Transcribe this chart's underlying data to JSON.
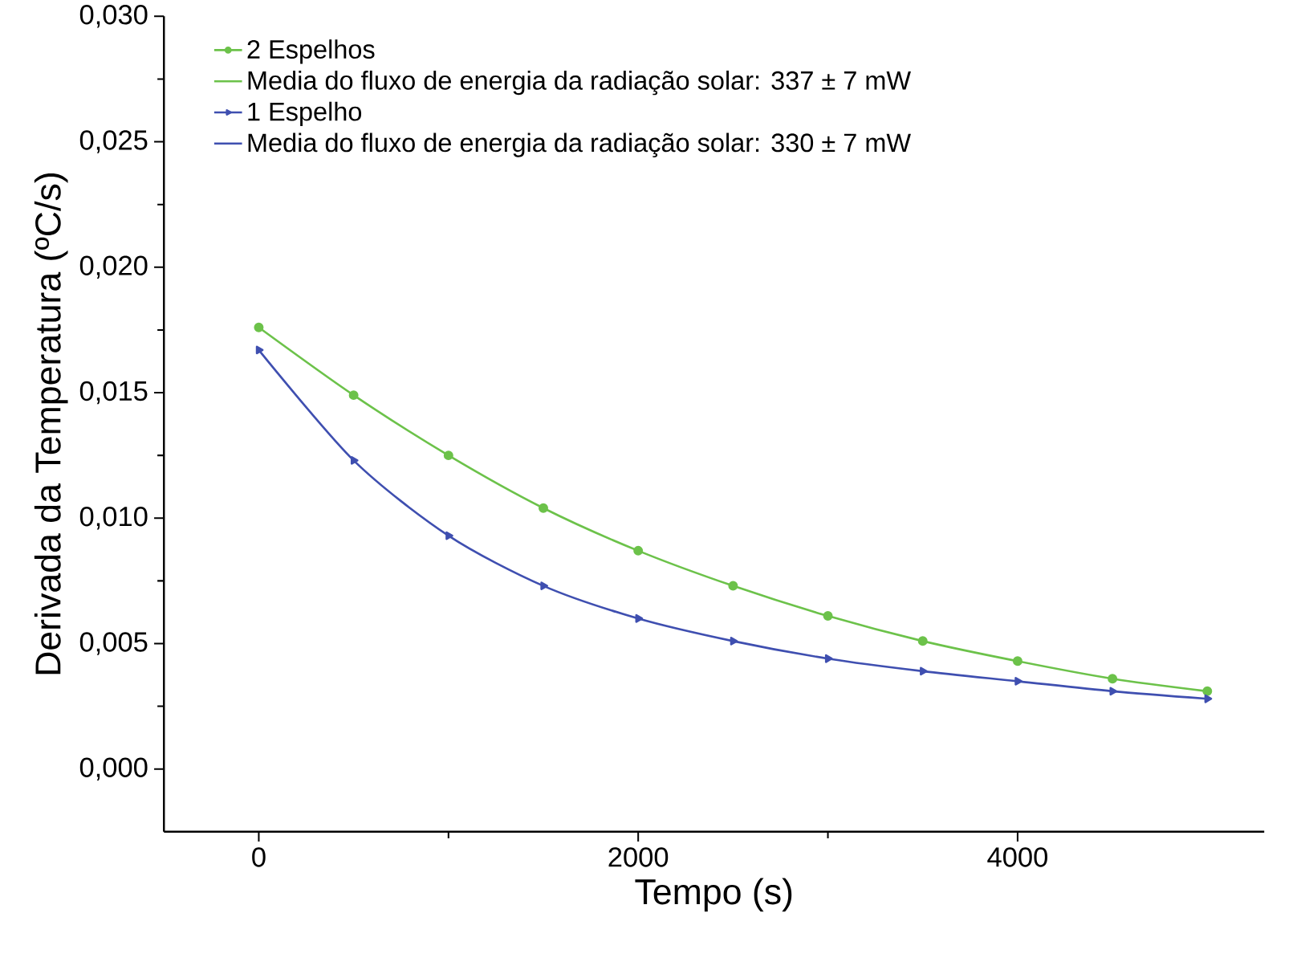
{
  "chart_data": {
    "type": "line",
    "xlabel": "Tempo (s)",
    "ylabel": "Derivada da Temperatura (ºC/s)",
    "annotations": [
      "Media do fluxo de energia da radiação solar: 337 ± 7 mW",
      "Media do fluxo de energia da radiação solar: 330 ± 7 mW"
    ],
    "x": [
      0,
      500,
      1000,
      1500,
      2000,
      2500,
      3000,
      3500,
      4000,
      4500,
      5000
    ],
    "series": [
      {
        "name": "2 Espelhos",
        "color": "#6cc24a",
        "marker": "circle",
        "values": [
          0.0176,
          0.0149,
          0.0125,
          0.0104,
          0.0087,
          0.0073,
          0.0061,
          0.0051,
          0.0043,
          0.0036,
          0.0031
        ]
      },
      {
        "name": "1 Espelho",
        "color": "#3f4fb0",
        "marker": "triangle",
        "values": [
          0.0167,
          0.0123,
          0.0093,
          0.0073,
          0.006,
          0.0051,
          0.0044,
          0.0039,
          0.0035,
          0.0031,
          0.0028
        ]
      }
    ],
    "xlim": [
      -500,
      5300
    ],
    "ylim": [
      -0.0025,
      0.03
    ],
    "xticks": [
      0,
      2000,
      4000
    ],
    "yticks": [
      {
        "value": 0,
        "label": "0,000"
      },
      {
        "value": 0.005,
        "label": "0,005"
      },
      {
        "value": 0.01,
        "label": "0,010"
      },
      {
        "value": 0.015,
        "label": "0,015"
      },
      {
        "value": 0.02,
        "label": "0,020"
      },
      {
        "value": 0.025,
        "label": "0,025"
      },
      {
        "value": 0.03,
        "label": "0,030"
      }
    ],
    "legend": "top left",
    "grid": false,
    "line_style": "solid"
  }
}
